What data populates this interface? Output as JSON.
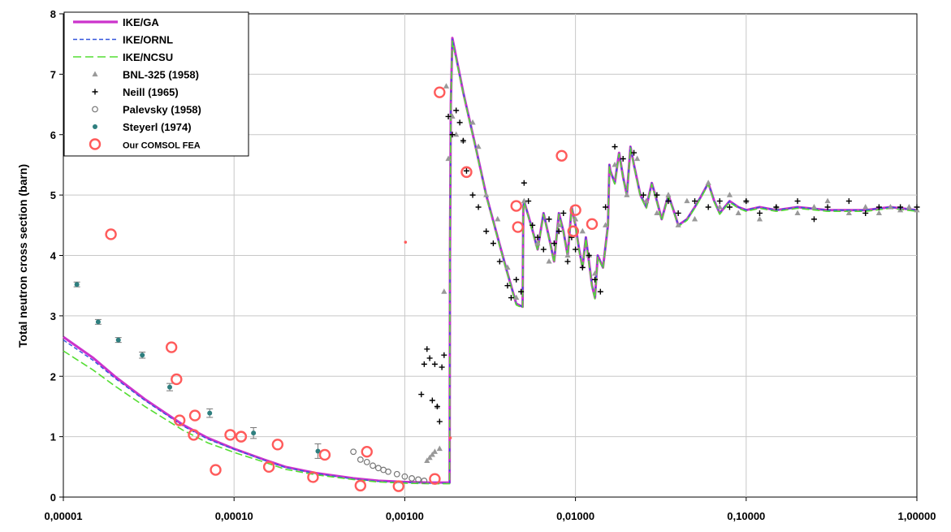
{
  "chart_data": {
    "type": "scatter",
    "title": "",
    "xlabel": "",
    "ylabel": "Total neutron cross section (barn)",
    "x_scale": "log",
    "xlim": [
      1e-05,
      1.0
    ],
    "ylim": [
      0,
      8
    ],
    "x_tick_labels": [
      "0,00001",
      "0,00010",
      "0,00100",
      "0,01000",
      "0,10000",
      "1,00000"
    ],
    "x_tick_values": [
      1e-05,
      0.0001,
      0.001,
      0.01,
      0.1,
      1.0
    ],
    "y_tick_labels": [
      "0",
      "1",
      "2",
      "3",
      "4",
      "5",
      "6",
      "7",
      "8"
    ],
    "grid": true,
    "legend_position": "top-left",
    "legend": [
      {
        "label": "IKE/GA",
        "style": "thick-solid",
        "color": "#cc33cc"
      },
      {
        "label": "IKE/ORNL",
        "style": "dashed",
        "color": "#3355dd"
      },
      {
        "label": "IKE/NCSU",
        "style": "long-dashed",
        "color": "#55dd33"
      },
      {
        "label": "BNL-325 (1958)",
        "style": "triangle",
        "color": "#999999"
      },
      {
        "label": "Neill (1965)",
        "style": "plus",
        "color": "#000000"
      },
      {
        "label": "Palevsky (1958)",
        "style": "open-circle",
        "color": "#777777"
      },
      {
        "label": "Steyerl (1974)",
        "style": "dot-errorbar",
        "color": "#2e7f7f"
      },
      {
        "label": "Our COMSOL FEA",
        "style": "ring",
        "color": "#ff5b5b"
      }
    ],
    "series": [
      {
        "name": "IKE/GA",
        "kind": "line",
        "color": "#cc33cc",
        "x": [
          1e-05,
          1.5e-05,
          2e-05,
          3e-05,
          5e-05,
          7e-05,
          0.0001,
          0.00015,
          0.0002,
          0.0003,
          0.0005,
          0.0007,
          0.001,
          0.0014,
          0.00183,
          0.00184,
          0.00186,
          0.0019,
          0.0022,
          0.0026,
          0.003,
          0.0035,
          0.004,
          0.0045,
          0.0049,
          0.00495,
          0.005,
          0.0055,
          0.006,
          0.0065,
          0.007,
          0.0075,
          0.008,
          0.0085,
          0.009,
          0.0095,
          0.01,
          0.0105,
          0.011,
          0.0115,
          0.012,
          0.0125,
          0.013,
          0.0135,
          0.0145,
          0.0155,
          0.0158,
          0.016,
          0.017,
          0.018,
          0.019,
          0.02,
          0.021,
          0.022,
          0.024,
          0.026,
          0.028,
          0.03,
          0.032,
          0.035,
          0.038,
          0.04,
          0.045,
          0.05,
          0.055,
          0.06,
          0.065,
          0.07,
          0.08,
          0.09,
          0.1,
          0.12,
          0.15,
          0.2,
          0.3,
          0.5,
          0.7,
          1.0
        ],
        "y": [
          2.65,
          2.3,
          2.0,
          1.62,
          1.2,
          0.98,
          0.8,
          0.62,
          0.5,
          0.4,
          0.31,
          0.27,
          0.25,
          0.24,
          0.24,
          4.0,
          6.5,
          7.6,
          6.7,
          5.8,
          5.0,
          4.3,
          3.7,
          3.2,
          3.15,
          4.8,
          4.9,
          4.5,
          4.1,
          4.7,
          4.3,
          3.9,
          4.7,
          4.4,
          4.0,
          4.8,
          4.5,
          4.1,
          3.8,
          4.3,
          3.9,
          3.5,
          3.3,
          4.0,
          3.8,
          4.5,
          5.5,
          5.4,
          5.2,
          5.7,
          5.3,
          5.0,
          5.8,
          5.5,
          5.0,
          4.8,
          5.2,
          4.9,
          4.6,
          5.0,
          4.7,
          4.5,
          4.6,
          4.8,
          5.0,
          5.2,
          4.9,
          4.7,
          4.9,
          4.8,
          4.75,
          4.8,
          4.75,
          4.8,
          4.75,
          4.75,
          4.8,
          4.75
        ]
      },
      {
        "name": "IKE/ORNL",
        "kind": "line",
        "color": "#3355dd",
        "x": [
          1e-05,
          1.5e-05,
          2e-05,
          3e-05,
          5e-05,
          7e-05,
          0.0001,
          0.00015,
          0.0002,
          0.0003,
          0.0005,
          0.0007,
          0.001,
          0.0014,
          0.00183,
          0.00184,
          0.00186,
          0.0019,
          0.0022,
          0.0026,
          0.003,
          0.0035,
          0.004,
          0.0045,
          0.0049,
          0.00495,
          0.005,
          0.0055,
          0.006,
          0.0065,
          0.007,
          0.0075,
          0.008,
          0.0085,
          0.009,
          0.0095,
          0.01,
          0.0105,
          0.011,
          0.0115,
          0.012,
          0.0125,
          0.013,
          0.0135,
          0.0145,
          0.0155,
          0.0158,
          0.016,
          0.017,
          0.018,
          0.019,
          0.02,
          0.021,
          0.022,
          0.024,
          0.026,
          0.028,
          0.03,
          0.032,
          0.035,
          0.038,
          0.04,
          0.045,
          0.05,
          0.055,
          0.06,
          0.065,
          0.07,
          0.08,
          0.09,
          0.1,
          0.12,
          0.15,
          0.2,
          0.3,
          0.5,
          0.7,
          1.0
        ],
        "y": [
          2.6,
          2.26,
          1.97,
          1.6,
          1.18,
          0.96,
          0.79,
          0.61,
          0.49,
          0.39,
          0.3,
          0.26,
          0.24,
          0.23,
          0.23,
          4.0,
          6.5,
          7.58,
          6.7,
          5.8,
          5.0,
          4.3,
          3.7,
          3.2,
          3.15,
          4.8,
          4.9,
          4.5,
          4.1,
          4.7,
          4.3,
          3.9,
          4.7,
          4.4,
          4.0,
          4.8,
          4.5,
          4.1,
          3.8,
          4.3,
          3.9,
          3.5,
          3.3,
          4.0,
          3.8,
          4.5,
          5.5,
          5.4,
          5.2,
          5.7,
          5.3,
          5.0,
          5.8,
          5.5,
          5.0,
          4.8,
          5.2,
          4.9,
          4.6,
          5.0,
          4.7,
          4.5,
          4.6,
          4.8,
          5.0,
          5.2,
          4.9,
          4.7,
          4.9,
          4.8,
          4.75,
          4.8,
          4.75,
          4.8,
          4.75,
          4.75,
          4.8,
          4.75
        ]
      },
      {
        "name": "IKE/NCSU",
        "kind": "line",
        "color": "#55dd33",
        "x": [
          1e-05,
          1.5e-05,
          2e-05,
          3e-05,
          5e-05,
          7e-05,
          0.0001,
          0.00015,
          0.0002,
          0.0003,
          0.0005,
          0.0007,
          0.001,
          0.0014,
          0.00183,
          0.00184,
          0.00186,
          0.0019,
          0.0022,
          0.0026,
          0.003,
          0.0035,
          0.004,
          0.0045,
          0.0049,
          0.00495,
          0.005,
          0.0055,
          0.006,
          0.0065,
          0.007,
          0.0075,
          0.008,
          0.0085,
          0.009,
          0.0095,
          0.01,
          0.0105,
          0.011,
          0.0115,
          0.012,
          0.0125,
          0.013,
          0.0135,
          0.0145,
          0.0155,
          0.0158,
          0.016,
          0.017,
          0.018,
          0.019,
          0.02,
          0.021,
          0.022,
          0.024,
          0.026,
          0.028,
          0.03,
          0.032,
          0.035,
          0.038,
          0.04,
          0.045,
          0.05,
          0.055,
          0.06,
          0.065,
          0.07,
          0.08,
          0.09,
          0.1,
          0.12,
          0.15,
          0.2,
          0.3,
          0.5,
          0.7,
          1.0
        ],
        "y": [
          2.42,
          2.1,
          1.84,
          1.5,
          1.11,
          0.9,
          0.74,
          0.58,
          0.46,
          0.37,
          0.29,
          0.25,
          0.23,
          0.22,
          0.22,
          4.0,
          6.5,
          7.55,
          6.68,
          5.78,
          4.98,
          4.28,
          3.68,
          3.18,
          3.13,
          4.78,
          4.88,
          4.48,
          4.08,
          4.68,
          4.28,
          3.88,
          4.68,
          4.38,
          3.98,
          4.78,
          4.48,
          4.08,
          3.78,
          4.28,
          3.88,
          3.48,
          3.28,
          3.98,
          3.78,
          4.48,
          5.48,
          5.38,
          5.18,
          5.68,
          5.28,
          4.98,
          5.78,
          5.48,
          4.98,
          4.78,
          5.18,
          4.88,
          4.58,
          4.98,
          4.68,
          4.48,
          4.58,
          4.78,
          4.98,
          5.18,
          4.88,
          4.68,
          4.88,
          4.78,
          4.73,
          4.78,
          4.73,
          4.78,
          4.73,
          4.73,
          4.78,
          4.73
        ]
      },
      {
        "name": "BNL-325 (1958)",
        "kind": "marker",
        "marker": "triangle",
        "color": "#999999",
        "x": [
          0.00135,
          0.0014,
          0.00145,
          0.0015,
          0.00155,
          0.0016,
          0.0017,
          0.00175,
          0.0018,
          0.0019,
          0.002,
          0.0022,
          0.0025,
          0.0027,
          0.003,
          0.0035,
          0.004,
          0.0045,
          0.005,
          0.006,
          0.007,
          0.008,
          0.009,
          0.01,
          0.011,
          0.012,
          0.013,
          0.015,
          0.017,
          0.02,
          0.023,
          0.026,
          0.03,
          0.035,
          0.04,
          0.045,
          0.05,
          0.06,
          0.07,
          0.08,
          0.09,
          0.1,
          0.12,
          0.15,
          0.2,
          0.25,
          0.3,
          0.4,
          0.5,
          0.6,
          0.7,
          0.8,
          0.9,
          1.0
        ],
        "y": [
          0.6,
          0.65,
          0.7,
          0.75,
          1.5,
          0.8,
          3.4,
          6.8,
          5.6,
          6.3,
          6.0,
          5.9,
          6.2,
          5.8,
          5.0,
          4.6,
          3.8,
          3.3,
          4.9,
          4.2,
          3.9,
          4.5,
          4.0,
          4.6,
          4.4,
          4.0,
          3.7,
          4.5,
          5.5,
          5.0,
          5.6,
          4.9,
          4.7,
          5.0,
          4.5,
          4.9,
          4.6,
          5.2,
          4.8,
          5.0,
          4.7,
          4.9,
          4.6,
          4.8,
          4.7,
          4.8,
          4.9,
          4.7,
          4.8,
          4.7,
          4.8,
          4.75,
          4.8,
          4.75
        ]
      },
      {
        "name": "Neill (1965)",
        "kind": "marker",
        "marker": "plus",
        "color": "#000000",
        "x": [
          0.00125,
          0.0013,
          0.00135,
          0.0014,
          0.00145,
          0.0015,
          0.00155,
          0.0016,
          0.00165,
          0.0017,
          0.0018,
          0.0019,
          0.002,
          0.0021,
          0.0022,
          0.0023,
          0.0025,
          0.0027,
          0.003,
          0.0033,
          0.0036,
          0.004,
          0.0042,
          0.0045,
          0.0048,
          0.005,
          0.0053,
          0.0056,
          0.006,
          0.0065,
          0.007,
          0.0075,
          0.008,
          0.0085,
          0.009,
          0.0095,
          0.01,
          0.011,
          0.012,
          0.013,
          0.014,
          0.015,
          0.017,
          0.019,
          0.022,
          0.025,
          0.03,
          0.035,
          0.04,
          0.05,
          0.06,
          0.07,
          0.08,
          0.1,
          0.12,
          0.15,
          0.2,
          0.25,
          0.3,
          0.4,
          0.5,
          0.6,
          0.8,
          1.0
        ],
        "y": [
          1.7,
          2.2,
          2.45,
          2.3,
          1.6,
          2.2,
          1.5,
          1.25,
          2.15,
          2.35,
          6.3,
          6.0,
          6.4,
          6.2,
          5.9,
          5.4,
          5.0,
          4.8,
          4.4,
          4.2,
          3.9,
          3.5,
          3.3,
          3.6,
          3.4,
          5.2,
          4.9,
          4.5,
          4.3,
          4.1,
          4.6,
          4.2,
          4.4,
          4.7,
          3.9,
          4.3,
          4.1,
          3.8,
          4.0,
          3.6,
          3.4,
          4.8,
          5.8,
          5.6,
          5.7,
          5.0,
          5.0,
          4.9,
          4.7,
          4.9,
          4.8,
          4.9,
          4.8,
          4.9,
          4.7,
          4.8,
          4.9,
          4.6,
          4.8,
          4.9,
          4.7,
          4.8,
          4.8,
          4.8
        ]
      },
      {
        "name": "Palevsky (1958)",
        "kind": "marker",
        "marker": "open-circle",
        "color": "#777777",
        "x": [
          0.0005,
          0.00055,
          0.0006,
          0.00065,
          0.0007,
          0.00075,
          0.0008,
          0.0009,
          0.001,
          0.0011,
          0.0012,
          0.0013
        ],
        "y": [
          0.75,
          0.62,
          0.58,
          0.52,
          0.48,
          0.45,
          0.42,
          0.38,
          0.34,
          0.31,
          0.29,
          0.27
        ]
      },
      {
        "name": "Steyerl (1974)",
        "kind": "marker",
        "marker": "dot-errorbar",
        "color": "#2e7f7f",
        "x": [
          1.2e-05,
          1.6e-05,
          2.1e-05,
          2.9e-05,
          4.2e-05,
          7.2e-05,
          0.00013,
          0.00031
        ],
        "y": [
          3.52,
          2.9,
          2.6,
          2.35,
          1.82,
          1.39,
          1.06,
          0.76
        ],
        "err": [
          0.04,
          0.04,
          0.04,
          0.05,
          0.06,
          0.07,
          0.09,
          0.12
        ]
      },
      {
        "name": "Our COMSOL FEA",
        "kind": "marker",
        "marker": "ring",
        "color": "#ff5b5b",
        "x": [
          1.9e-05,
          4.3e-05,
          4.6e-05,
          4.8e-05,
          5.8e-05,
          5.9e-05,
          7.8e-05,
          9.5e-05,
          0.00011,
          0.00016,
          0.00018,
          0.00029,
          0.00034,
          0.00055,
          0.0006,
          0.00092,
          0.0015,
          0.0016,
          0.0023,
          0.0045,
          0.0046,
          0.0083,
          0.0097,
          0.01,
          0.0125
        ],
        "y": [
          4.35,
          2.48,
          1.95,
          1.27,
          1.03,
          1.35,
          0.45,
          1.03,
          1.0,
          0.5,
          0.87,
          0.33,
          0.7,
          0.19,
          0.75,
          0.18,
          0.3,
          6.7,
          5.38,
          4.82,
          4.47,
          5.65,
          4.4,
          4.75,
          4.52
        ]
      },
      {
        "name": "",
        "kind": "marker",
        "marker": "dot",
        "color": "#ff5b5b",
        "x": [
          0.00101,
          0.00185
        ],
        "y": [
          4.22,
          0.98
        ]
      }
    ]
  }
}
